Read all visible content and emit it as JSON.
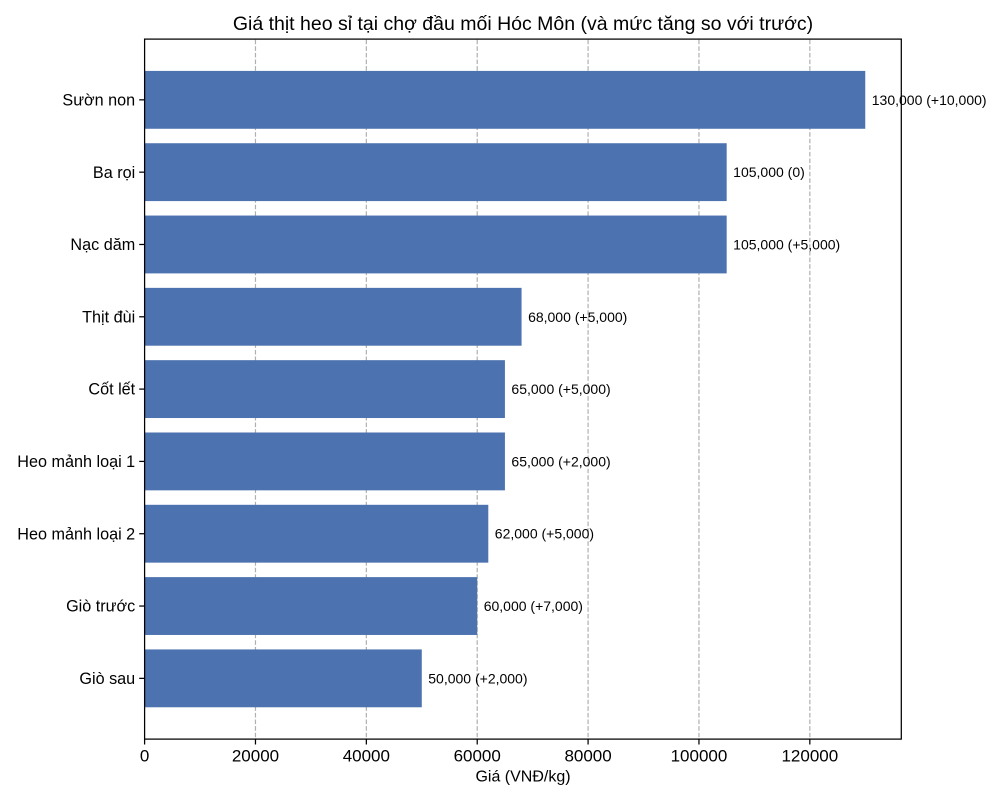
{
  "chart_data": {
    "type": "bar",
    "orientation": "horizontal",
    "title": "Giá thịt heo sỉ tại chợ đầu mối Hóc Môn (và mức tăng so với trước)",
    "xlabel": "Giá (VNĐ/kg)",
    "ylabel": "",
    "categories": [
      "Sườn non",
      "Ba rọi",
      "Nạc dăm",
      "Thịt đùi",
      "Cốt lết",
      "Heo mảnh loại 1",
      "Heo mảnh loại 2",
      "Giò trước",
      "Giò sau"
    ],
    "values": [
      130000,
      105000,
      105000,
      68000,
      65000,
      65000,
      62000,
      60000,
      50000
    ],
    "deltas": [
      10000,
      0,
      5000,
      5000,
      5000,
      2000,
      5000,
      7000,
      2000
    ],
    "bar_labels": [
      "130,000 (+10,000)",
      "105,000 (0)",
      "105,000 (+5,000)",
      "68,000 (+5,000)",
      "65,000 (+5,000)",
      "65,000 (+2,000)",
      "62,000 (+5,000)",
      "60,000 (+7,000)",
      "50,000 (+2,000)"
    ],
    "x_ticks": [
      0,
      20000,
      40000,
      60000,
      80000,
      100000,
      120000
    ],
    "x_tick_labels": [
      "0",
      "20000",
      "40000",
      "60000",
      "80000",
      "100000",
      "120000"
    ],
    "xlim": [
      0,
      136500
    ],
    "grid": {
      "axis": "x",
      "linestyle": "dashed",
      "color": "#b0b0b0",
      "on": true
    },
    "legend": null,
    "colors": {
      "bar": "#4c72b0",
      "text": "#000000",
      "spine": "#000000",
      "background": "#ffffff"
    }
  }
}
